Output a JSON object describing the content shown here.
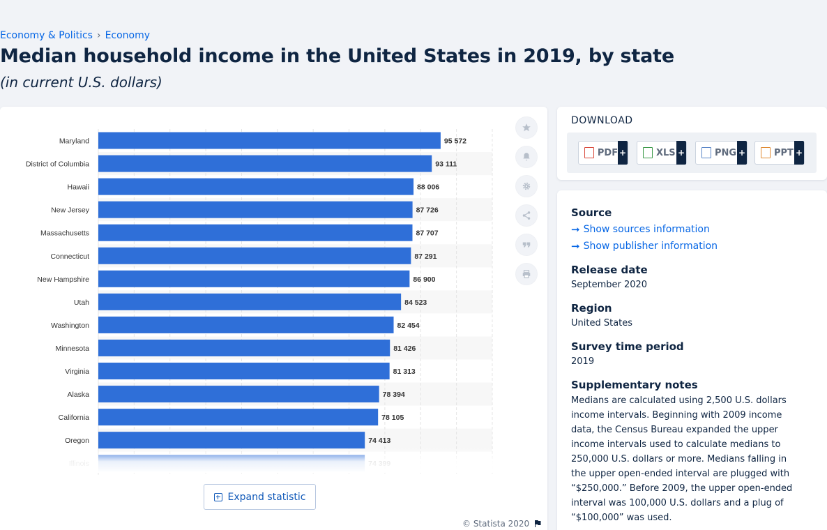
{
  "breadcrumb": {
    "item1": "Economy & Politics",
    "item2": "Economy"
  },
  "page": {
    "title": "Median household income in the United States in 2019, by state",
    "subtitle": "(in current U.S. dollars)"
  },
  "chart_data": {
    "type": "bar",
    "orientation": "horizontal",
    "categories": [
      "Maryland",
      "District of Columbia",
      "Hawaii",
      "New Jersey",
      "Massachusetts",
      "Connecticut",
      "New Hampshire",
      "Utah",
      "Washington",
      "Minnesota",
      "Virginia",
      "Alaska",
      "California",
      "Oregon",
      "Illinois"
    ],
    "values": [
      95572,
      93111,
      88006,
      87726,
      87707,
      87291,
      86900,
      84523,
      82454,
      81426,
      81313,
      78394,
      78105,
      74413,
      74399
    ],
    "value_labels": [
      "95 572",
      "93 111",
      "88 006",
      "87 726",
      "87 707",
      "87 291",
      "86 900",
      "84 523",
      "82 454",
      "81 426",
      "81 313",
      "78 394",
      "78 105",
      "74 413",
      "74 399"
    ],
    "xlim": [
      0,
      110000
    ],
    "grid": true,
    "bar_color": "#2f6fd8"
  },
  "actions": {
    "favorite": "star-icon",
    "notify": "bell-icon",
    "settings": "gear-icon",
    "share": "share-icon",
    "cite": "quote-icon",
    "print": "print-icon"
  },
  "expand": {
    "label": "Expand statistic"
  },
  "copyright": {
    "text": "© Statista 2020"
  },
  "download": {
    "title": "DOWNLOAD",
    "formats": [
      "PDF",
      "XLS",
      "PNG",
      "PPT"
    ],
    "plus": "+"
  },
  "info": {
    "source_label": "Source",
    "sources_link": "Show sources information",
    "publisher_link": "Show publisher information",
    "release_label": "Release date",
    "release_value": "September 2020",
    "region_label": "Region",
    "region_value": "United States",
    "survey_label": "Survey time period",
    "survey_value": "2019",
    "notes_label": "Supplementary notes",
    "notes_value": "Medians are calculated using 2,500 U.S. dollars income intervals. Beginning with 2009 income data, the Census Bureau expanded the upper income intervals used to calculate medians to 250,000 U.S. dollars or more. Medians falling in the upper open-ended interval are plugged with “$250,000.” Before 2009, the upper open-ended interval was 100,000 U.S. dollars and a plug of “$100,000” was used."
  }
}
